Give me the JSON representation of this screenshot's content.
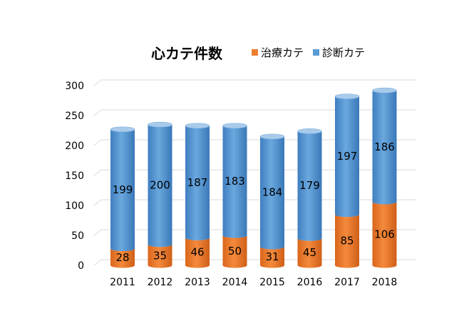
{
  "chart_data": {
    "type": "bar",
    "title": "心カテ件数",
    "categories": [
      "2011",
      "2012",
      "2013",
      "2014",
      "2015",
      "2016",
      "2017",
      "2018"
    ],
    "series": [
      {
        "name": "治療カテ",
        "color": "#ed7d31",
        "values": [
          28,
          35,
          46,
          50,
          31,
          45,
          85,
          106
        ]
      },
      {
        "name": "診断カテ",
        "color": "#5b9bd5",
        "values": [
          199,
          200,
          187,
          183,
          184,
          179,
          197,
          186
        ]
      }
    ],
    "stacked": true,
    "bar_shape": "cylinder",
    "ylim": [
      0,
      300
    ],
    "yticks": [
      0,
      50,
      100,
      150,
      200,
      250,
      300
    ],
    "grid": true,
    "legend_position": "top-right"
  }
}
